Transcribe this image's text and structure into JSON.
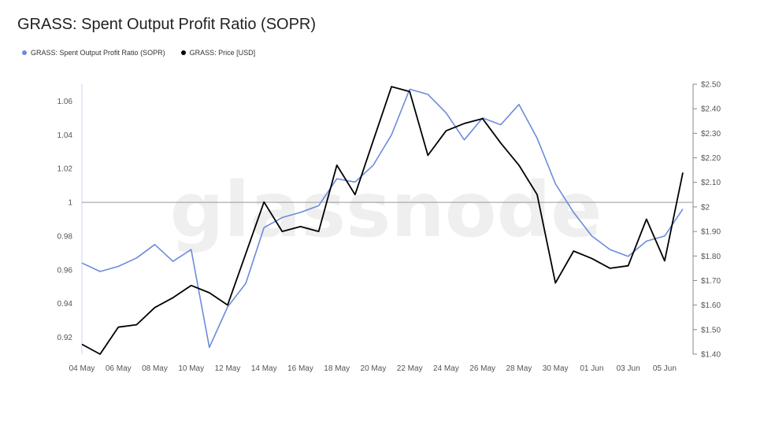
{
  "title": "GRASS: Spent Output Profit Ratio (SOPR)",
  "watermark": "glassnode",
  "legend": [
    {
      "name": "GRASS: Spent Output Profit Ratio (SOPR)",
      "color": "#6b8bdb"
    },
    {
      "name": "GRASS: Price [USD]",
      "color": "#000000"
    }
  ],
  "chart_data": {
    "type": "line",
    "x_labels": [
      "04 May",
      "06 May",
      "08 May",
      "10 May",
      "12 May",
      "14 May",
      "16 May",
      "18 May",
      "20 May",
      "22 May",
      "24 May",
      "26 May",
      "28 May",
      "30 May",
      "01 Jun",
      "03 Jun",
      "05 Jun"
    ],
    "left_axis": {
      "ticks": [
        0.92,
        0.94,
        0.96,
        0.98,
        1,
        1.02,
        1.04,
        1.06
      ],
      "tick_labels": [
        "0.92",
        "0.94",
        "0.96",
        "0.98",
        "1",
        "1.02",
        "1.04",
        "1.06"
      ],
      "range": [
        0.91,
        1.07
      ]
    },
    "right_axis": {
      "ticks": [
        1.4,
        1.5,
        1.6,
        1.7,
        1.8,
        1.9,
        2.0,
        2.1,
        2.2,
        2.3,
        2.4,
        2.5
      ],
      "tick_labels": [
        "$1.40",
        "$1.50",
        "$1.60",
        "$1.70",
        "$1.80",
        "$1.90",
        "$2",
        "$2.10",
        "$2.20",
        "$2.30",
        "$2.40",
        "$2.50"
      ],
      "range": [
        1.4,
        2.5
      ]
    },
    "reference_line": 1,
    "series": [
      {
        "name": "GRASS: Spent Output Profit Ratio (SOPR)",
        "axis": "left",
        "color": "#6b8bdb",
        "values": [
          0.964,
          0.959,
          0.962,
          0.967,
          0.975,
          0.965,
          0.972,
          0.914,
          0.938,
          0.952,
          0.985,
          0.991,
          0.994,
          0.998,
          1.014,
          1.012,
          1.022,
          1.04,
          1.067,
          1.064,
          1.053,
          1.037,
          1.05,
          1.046,
          1.058,
          1.038,
          1.011,
          0.994,
          0.98,
          0.972,
          0.968,
          0.977,
          0.98,
          0.996
        ]
      },
      {
        "name": "GRASS: Price [USD]",
        "axis": "right",
        "color": "#000000",
        "values": [
          1.44,
          1.4,
          1.51,
          1.52,
          1.59,
          1.63,
          1.68,
          1.65,
          1.6,
          1.81,
          2.02,
          1.9,
          1.92,
          1.9,
          2.17,
          2.05,
          2.27,
          2.49,
          2.47,
          2.21,
          2.31,
          2.34,
          2.36,
          2.26,
          2.17,
          2.05,
          1.69,
          1.82,
          1.79,
          1.75,
          1.76,
          1.95,
          1.78,
          2.14
        ]
      }
    ]
  }
}
